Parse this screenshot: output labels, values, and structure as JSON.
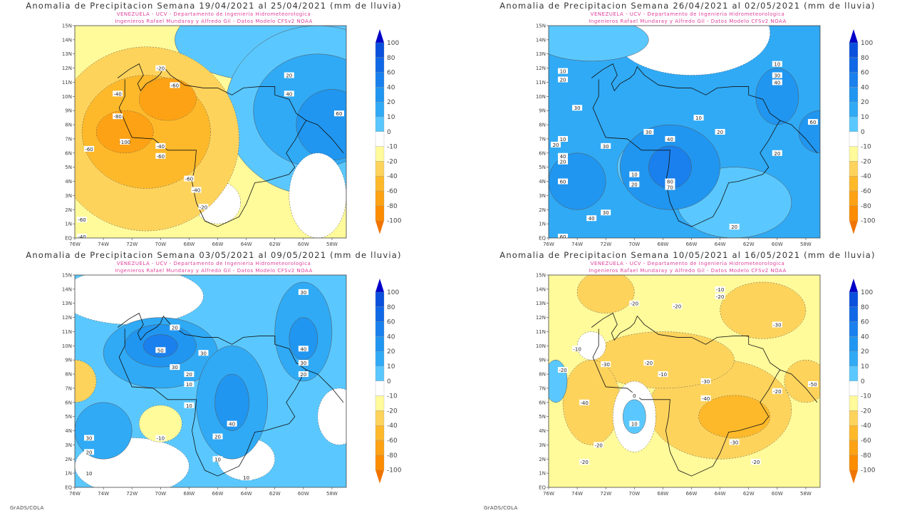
{
  "footer": "GrADS/COLA",
  "subtitle_1": "VENEZUELA - UCV - Departamento de Ingenieria Hidrometeorologica",
  "subtitle_2": "Ingenieros Rafael Mundaray y Alfredo Gil - Datos Modelo CFSv2 NOAA",
  "axes": {
    "lon_ticks": [
      "76W",
      "74W",
      "72W",
      "70W",
      "68W",
      "66W",
      "64W",
      "62W",
      "60W",
      "58W"
    ],
    "lat_ticks": [
      "EQ",
      "1N",
      "2N",
      "3N",
      "4N",
      "5N",
      "6N",
      "7N",
      "8N",
      "9N",
      "10N",
      "11N",
      "12N",
      "13N",
      "14N",
      "15N"
    ],
    "lon_range": [
      -76,
      -57
    ],
    "lat_range": [
      0,
      15
    ]
  },
  "colorbar": {
    "labels": [
      "100",
      "80",
      "60",
      "40",
      "20",
      "10",
      "0",
      "-10",
      "-20",
      "-40",
      "-60",
      "-80",
      "-100"
    ],
    "colors": [
      "#0a50dc",
      "#1068e6",
      "#1a80ee",
      "#2096f0",
      "#30aaf5",
      "#5ac8ff",
      "#ffffff",
      "#fffa9a",
      "#fdd35c",
      "#fdb92a",
      "#fda214",
      "#fc8c00"
    ],
    "over_color": "#0000c8",
    "under_color": "#f07400"
  },
  "panels": [
    {
      "title": "Anomalia de Precipitacion Semana 19/04/2021 al 25/04/2021 (mm de lluvia)",
      "base": "#fffa9a",
      "fields": [
        [
          -62,
          14,
          7,
          3,
          "#5ac8ff"
        ],
        [
          -59,
          9,
          6.5,
          6,
          "#5ac8ff"
        ],
        [
          -59,
          9,
          4.5,
          4,
          "#30aaf5"
        ],
        [
          -58,
          8,
          2.5,
          2.5,
          "#2096f0"
        ],
        [
          -59,
          3,
          2,
          3,
          "#ffffff"
        ],
        [
          -66,
          2.5,
          1.6,
          1.5,
          "#ffffff"
        ],
        [
          -70,
          2,
          0.5,
          0.5,
          "#5ac8ff"
        ],
        [
          -71,
          7,
          6.5,
          6.5,
          "#fdd35c"
        ],
        [
          -71,
          7.5,
          4.5,
          4,
          "#fdb92a"
        ],
        [
          -72.5,
          7.5,
          2,
          1.5,
          "#fda214"
        ],
        [
          -69.5,
          9.8,
          2,
          1.5,
          "#fda214"
        ]
      ],
      "labels": [
        [
          "-20",
          -70,
          12
        ],
        [
          "-40",
          -73,
          10.2
        ],
        [
          "-60",
          -69,
          10.8
        ],
        [
          "-80",
          -73,
          8.6
        ],
        [
          "-100",
          -72.5,
          6.8
        ],
        [
          "-60",
          -75,
          6.3
        ],
        [
          "-40",
          -70,
          6.5
        ],
        [
          "-60",
          -70,
          5.8
        ],
        [
          "-60",
          -68,
          4.2
        ],
        [
          "-40",
          -67.5,
          3.4
        ],
        [
          "-20",
          -67,
          2.2
        ],
        [
          "20",
          -61,
          11.5
        ],
        [
          "40",
          -61,
          10.2
        ],
        [
          "60",
          -57.5,
          8.8
        ],
        [
          "-60",
          -75.5,
          1.3
        ],
        [
          "-40",
          -75.5,
          0.1
        ]
      ]
    },
    {
      "title": "Anomalia de Precipitacion Semana 26/04/2021 al 02/05/2021 (mm de lluvia)",
      "base": "#30aaf5",
      "fields": [
        [
          -66,
          14.5,
          5.5,
          3,
          "#ffffff"
        ],
        [
          -73,
          14,
          4,
          1.5,
          "#5ac8ff"
        ],
        [
          -63,
          2.5,
          4,
          2.5,
          "#5ac8ff"
        ],
        [
          -70,
          5,
          1.2,
          1.5,
          "#5ac8ff"
        ],
        [
          -67.5,
          5,
          3.5,
          3,
          "#2096f0"
        ],
        [
          -67.5,
          5,
          1.5,
          1.5,
          "#1a80ee"
        ],
        [
          -74,
          4,
          2,
          2,
          "#2096f0"
        ],
        [
          -60,
          10,
          1.5,
          2,
          "#2096f0"
        ],
        [
          -57,
          7.5,
          1.5,
          1.5,
          "#2096f0"
        ]
      ],
      "labels": [
        [
          "10",
          -75,
          11.8
        ],
        [
          "20",
          -75,
          11.2
        ],
        [
          "30",
          -74,
          9.2
        ],
        [
          "10",
          -75,
          7
        ],
        [
          "20",
          -75.5,
          6.6
        ],
        [
          "40",
          -75,
          5.8
        ],
        [
          "20",
          -75,
          5.4
        ],
        [
          "60",
          -75,
          4
        ],
        [
          "30",
          -72,
          6.5
        ],
        [
          "10",
          -70,
          4.5
        ],
        [
          "20",
          -70,
          3.8
        ],
        [
          "30",
          -72,
          1.8
        ],
        [
          "40",
          -73,
          1.4
        ],
        [
          "30",
          -69,
          7.5
        ],
        [
          "40",
          -67.5,
          7
        ],
        [
          "80",
          -67.5,
          4
        ],
        [
          "70",
          -67.5,
          3.6
        ],
        [
          "10",
          -65.5,
          8.5
        ],
        [
          "20",
          -64,
          7.5
        ],
        [
          "10",
          -60,
          12.3
        ],
        [
          "30",
          -60,
          11.5
        ],
        [
          "40",
          -60,
          11
        ],
        [
          "20",
          -60,
          6
        ],
        [
          "60",
          -57.5,
          8.2
        ],
        [
          "20",
          -63,
          0.8
        ],
        [
          "60",
          -75,
          0.1
        ]
      ]
    },
    {
      "title": "Anomalia de Precipitacion Semana 03/05/2021 al 09/05/2021 (mm de lluvia)",
      "base": "#5ac8ff",
      "fields": [
        [
          -72,
          13.5,
          5,
          2,
          "#ffffff"
        ],
        [
          -72,
          1.5,
          4,
          2,
          "#ffffff"
        ],
        [
          -64,
          2,
          2,
          1.5,
          "#ffffff"
        ],
        [
          -57.5,
          5,
          1.5,
          2,
          "#ffffff"
        ],
        [
          -70,
          9.5,
          4,
          2.5,
          "#30aaf5"
        ],
        [
          -70,
          10,
          2.5,
          1.5,
          "#2096f0"
        ],
        [
          -70,
          10,
          1.2,
          0.8,
          "#1a80ee"
        ],
        [
          -65,
          6,
          2.5,
          4,
          "#30aaf5"
        ],
        [
          -65,
          6,
          1.2,
          2,
          "#2096f0"
        ],
        [
          -60,
          11,
          2,
          3.5,
          "#30aaf5"
        ],
        [
          -60,
          10.5,
          1,
          1.5,
          "#2096f0"
        ],
        [
          -74,
          4,
          2,
          2,
          "#30aaf5"
        ],
        [
          -70,
          4.5,
          1.5,
          1.3,
          "#fffa9a"
        ],
        [
          -76,
          7.5,
          1.5,
          1.5,
          "#fdd35c"
        ]
      ],
      "labels": [
        [
          "10",
          -75,
          1
        ],
        [
          "20",
          -75,
          2.5
        ],
        [
          "30",
          -75,
          3.5
        ],
        [
          "-10",
          -70,
          3.5
        ],
        [
          "10",
          -68,
          5.8
        ],
        [
          "20",
          -68,
          8
        ],
        [
          "30",
          -69,
          8.5
        ],
        [
          "50",
          -70,
          9.7
        ],
        [
          "20",
          -69,
          11.3
        ],
        [
          "30",
          -67,
          9.5
        ],
        [
          "10",
          -68,
          7.3
        ],
        [
          "40",
          -65,
          4.5
        ],
        [
          "20",
          -66,
          3.6
        ],
        [
          "10",
          -66,
          2
        ],
        [
          "10",
          -64,
          0.7
        ],
        [
          "30",
          -60,
          13.8
        ],
        [
          "40",
          -60,
          9.8
        ],
        [
          "30",
          -60,
          8.8
        ],
        [
          "20",
          -60,
          8
        ]
      ]
    },
    {
      "title": "Anomalia de Precipitacion Semana 10/05/2021 al 16/05/2021 (mm de lluvia)",
      "base": "#fffa9a",
      "fields": [
        [
          -64,
          5.5,
          5,
          3.5,
          "#fdd35c"
        ],
        [
          -63,
          5,
          2.5,
          1.5,
          "#fdb92a"
        ],
        [
          -61,
          12.5,
          3,
          2,
          "#fdd35c"
        ],
        [
          -68,
          9,
          5,
          2,
          "#fdd35c"
        ],
        [
          -73,
          6,
          2,
          3,
          "#fdd35c"
        ],
        [
          -58,
          7.5,
          1.5,
          1.5,
          "#fdd35c"
        ],
        [
          -72,
          13.8,
          2,
          1.5,
          "#fdd35c"
        ],
        [
          -70,
          5,
          1.5,
          2.5,
          "#ffffff"
        ],
        [
          -70,
          5,
          0.8,
          1.2,
          "#5ac8ff"
        ],
        [
          -75.5,
          7.5,
          0.8,
          1.5,
          "#5ac8ff"
        ],
        [
          -73,
          10,
          1,
          1,
          "#ffffff"
        ]
      ],
      "labels": [
        [
          "-10",
          -64,
          14
        ],
        [
          "-20",
          -64,
          13.5
        ],
        [
          "-20",
          -70,
          13
        ],
        [
          "-20",
          -67,
          12.8
        ],
        [
          "-30",
          -60,
          11.5
        ],
        [
          "-10",
          -74,
          9.8
        ],
        [
          "-20",
          -75,
          8.3
        ],
        [
          "-30",
          -72,
          8.7
        ],
        [
          "-20",
          -69,
          8.8
        ],
        [
          "-10",
          -68,
          8
        ],
        [
          "-20",
          -72.5,
          3
        ],
        [
          "-40",
          -73.5,
          6
        ],
        [
          "0",
          -70,
          6.5
        ],
        [
          "10",
          -70,
          4.5
        ],
        [
          "-30",
          -65,
          7.5
        ],
        [
          "-40",
          -65,
          6.3
        ],
        [
          "-20",
          -60,
          6.8
        ],
        [
          "-50",
          -57.5,
          7.3
        ],
        [
          "-30",
          -63,
          3.2
        ],
        [
          "-20",
          -61.5,
          1.8
        ],
        [
          "-20",
          -73.5,
          1.8
        ]
      ]
    }
  ]
}
